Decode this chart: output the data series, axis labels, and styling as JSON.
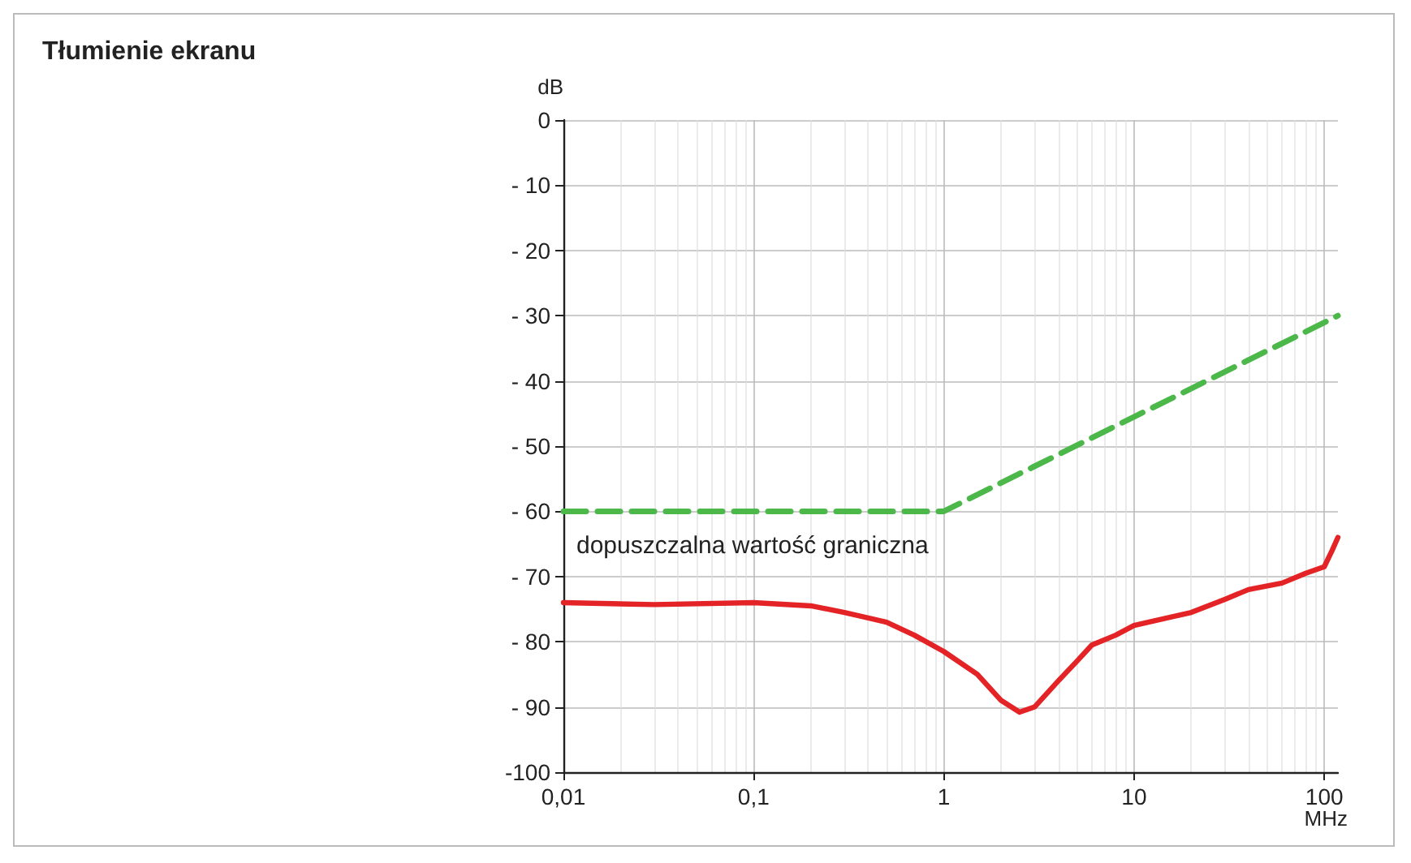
{
  "chart_data": {
    "type": "line",
    "title": "Tłumienie ekranu",
    "xlabel": "MHz",
    "ylabel": "dB",
    "log": "x",
    "xlim": [
      0.01,
      118
    ],
    "ylim": [
      -100,
      0
    ],
    "xticks": [
      {
        "value": 0.01,
        "label": "0,01"
      },
      {
        "value": 0.1,
        "label": "0,1"
      },
      1,
      10,
      100
    ],
    "yticks": [
      {
        "value": -100,
        "label": "-100"
      },
      {
        "value": -90,
        "label": "- 90"
      },
      {
        "value": -80,
        "label": "- 80"
      },
      {
        "value": -70,
        "label": "- 70"
      },
      {
        "value": -60,
        "label": "- 60"
      },
      {
        "value": -50,
        "label": "- 50"
      },
      {
        "value": -40,
        "label": "- 40"
      },
      {
        "value": -30,
        "label": "- 30"
      },
      {
        "value": -20,
        "label": "- 20"
      },
      {
        "value": -10,
        "label": "- 10"
      },
      0
    ],
    "grid": true,
    "series": [
      {
        "color": "#e42326",
        "line_style": "solid",
        "x": [
          0.01,
          0.03,
          0.1,
          0.2,
          0.3,
          0.5,
          0.7,
          1,
          1.5,
          2,
          2.5,
          3,
          4,
          5,
          6,
          8,
          10,
          20,
          30,
          40,
          60,
          80,
          100,
          110,
          118
        ],
        "values": [
          -74,
          -74.3,
          -74,
          -74.5,
          -75.5,
          -77,
          -79,
          -81.5,
          -85,
          -89,
          -90.8,
          -90,
          -86,
          -83,
          -80.5,
          -79,
          -77.5,
          -75.5,
          -73.5,
          -72,
          -71,
          -69.5,
          -68.5,
          -66,
          -64
        ]
      },
      {
        "name": "dopuszczalna wartość graniczna",
        "color": "#4cb84a",
        "line_style": "dashed",
        "x": [
          0.01,
          1,
          118
        ],
        "values": [
          -60,
          -60,
          -30
        ]
      }
    ]
  }
}
